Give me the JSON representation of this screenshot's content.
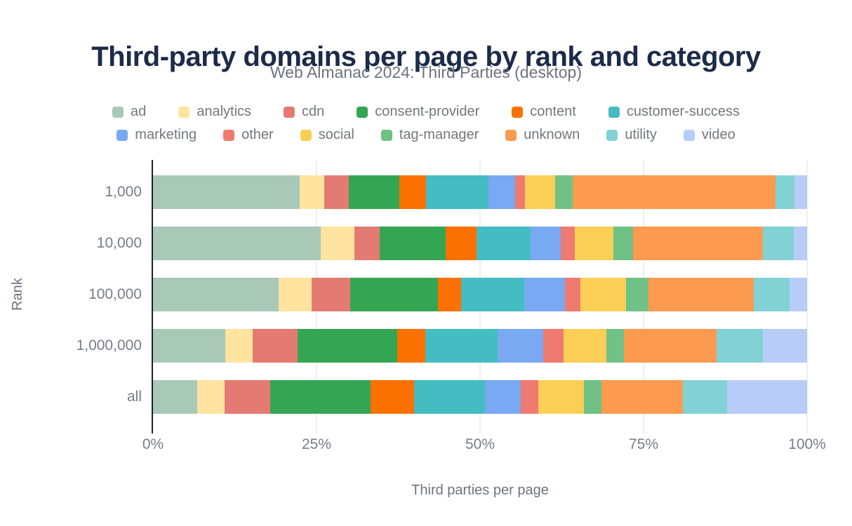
{
  "header": {
    "title": "Third-party domains per page by rank and category",
    "subtitle": "Web Almanac 2024: Third Parties (desktop)"
  },
  "legend": {
    "rows": [
      [
        {
          "label": "ad",
          "color": "#a8c9b8"
        },
        {
          "label": "analytics",
          "color": "#fee49e"
        },
        {
          "label": "cdn",
          "color": "#e47b72"
        },
        {
          "label": "consent-provider",
          "color": "#34a653"
        },
        {
          "label": "content",
          "color": "#fa7100"
        },
        {
          "label": "customer-success",
          "color": "#45bcc1"
        }
      ],
      [
        {
          "label": "marketing",
          "color": "#78a9f2"
        },
        {
          "label": "other",
          "color": "#ee7a70"
        },
        {
          "label": "social",
          "color": "#fbce55"
        },
        {
          "label": "tag-manager",
          "color": "#70c185"
        },
        {
          "label": "unknown",
          "color": "#fc9a50"
        },
        {
          "label": "utility",
          "color": "#81d1d5"
        },
        {
          "label": "video",
          "color": "#b7cdf8"
        }
      ]
    ]
  },
  "chart_data": {
    "type": "bar",
    "orientation": "horizontal",
    "stacked": true,
    "units": "percent of third-party domains per page",
    "title": "Third-party domains per page by rank and category",
    "subtitle": "Web Almanac 2024: Third Parties (desktop)",
    "categories": [
      "1,000",
      "10,000",
      "100,000",
      "1,000,000",
      "all"
    ],
    "series": [
      {
        "name": "ad",
        "color": "#a8c9b8",
        "values": [
          22.4,
          25.6,
          19.2,
          11.0,
          6.8
        ]
      },
      {
        "name": "analytics",
        "color": "#fee49e",
        "values": [
          3.8,
          5.2,
          5.0,
          4.2,
          4.1
        ]
      },
      {
        "name": "cdn",
        "color": "#e47b72",
        "values": [
          3.7,
          3.9,
          6.0,
          6.9,
          7.0
        ]
      },
      {
        "name": "consent-provider",
        "color": "#34a653",
        "values": [
          7.8,
          10.0,
          13.4,
          15.2,
          15.4
        ]
      },
      {
        "name": "content",
        "color": "#fa7100",
        "values": [
          4.0,
          4.8,
          3.5,
          4.3,
          6.6
        ]
      },
      {
        "name": "customer-success",
        "color": "#45bcc1",
        "values": [
          9.6,
          8.2,
          9.7,
          11.1,
          10.9
        ]
      },
      {
        "name": "marketing",
        "color": "#78a9f2",
        "values": [
          4.1,
          4.6,
          6.2,
          7.0,
          5.4
        ]
      },
      {
        "name": "other",
        "color": "#ee7a70",
        "values": [
          1.5,
          2.2,
          2.4,
          3.1,
          2.7
        ]
      },
      {
        "name": "social",
        "color": "#fbce55",
        "values": [
          4.6,
          5.9,
          6.9,
          6.5,
          7.0
        ]
      },
      {
        "name": "tag-manager",
        "color": "#70c185",
        "values": [
          2.7,
          3.0,
          3.5,
          2.7,
          2.7
        ]
      },
      {
        "name": "unknown",
        "color": "#fc9a50",
        "values": [
          31.0,
          19.9,
          16.1,
          14.2,
          12.4
        ]
      },
      {
        "name": "utility",
        "color": "#81d1d5",
        "values": [
          2.9,
          4.7,
          5.4,
          7.0,
          6.8
        ]
      },
      {
        "name": "video",
        "color": "#b7cdf8",
        "values": [
          1.9,
          2.0,
          2.7,
          6.8,
          12.2
        ]
      }
    ],
    "xlabel": "Third parties per page",
    "ylabel": "Rank",
    "x_ticks": [
      "0%",
      "25%",
      "50%",
      "75%",
      "100%"
    ],
    "xlim": [
      0,
      100
    ],
    "grid": "vertical",
    "legend_position": "top"
  },
  "colors": {
    "title": "#1c2b4a",
    "muted_text": "#6d737e",
    "tick_text": "#787d87",
    "axis_line": "#1b1e24",
    "gridline": "#edeef1",
    "background": "#ffffff"
  }
}
